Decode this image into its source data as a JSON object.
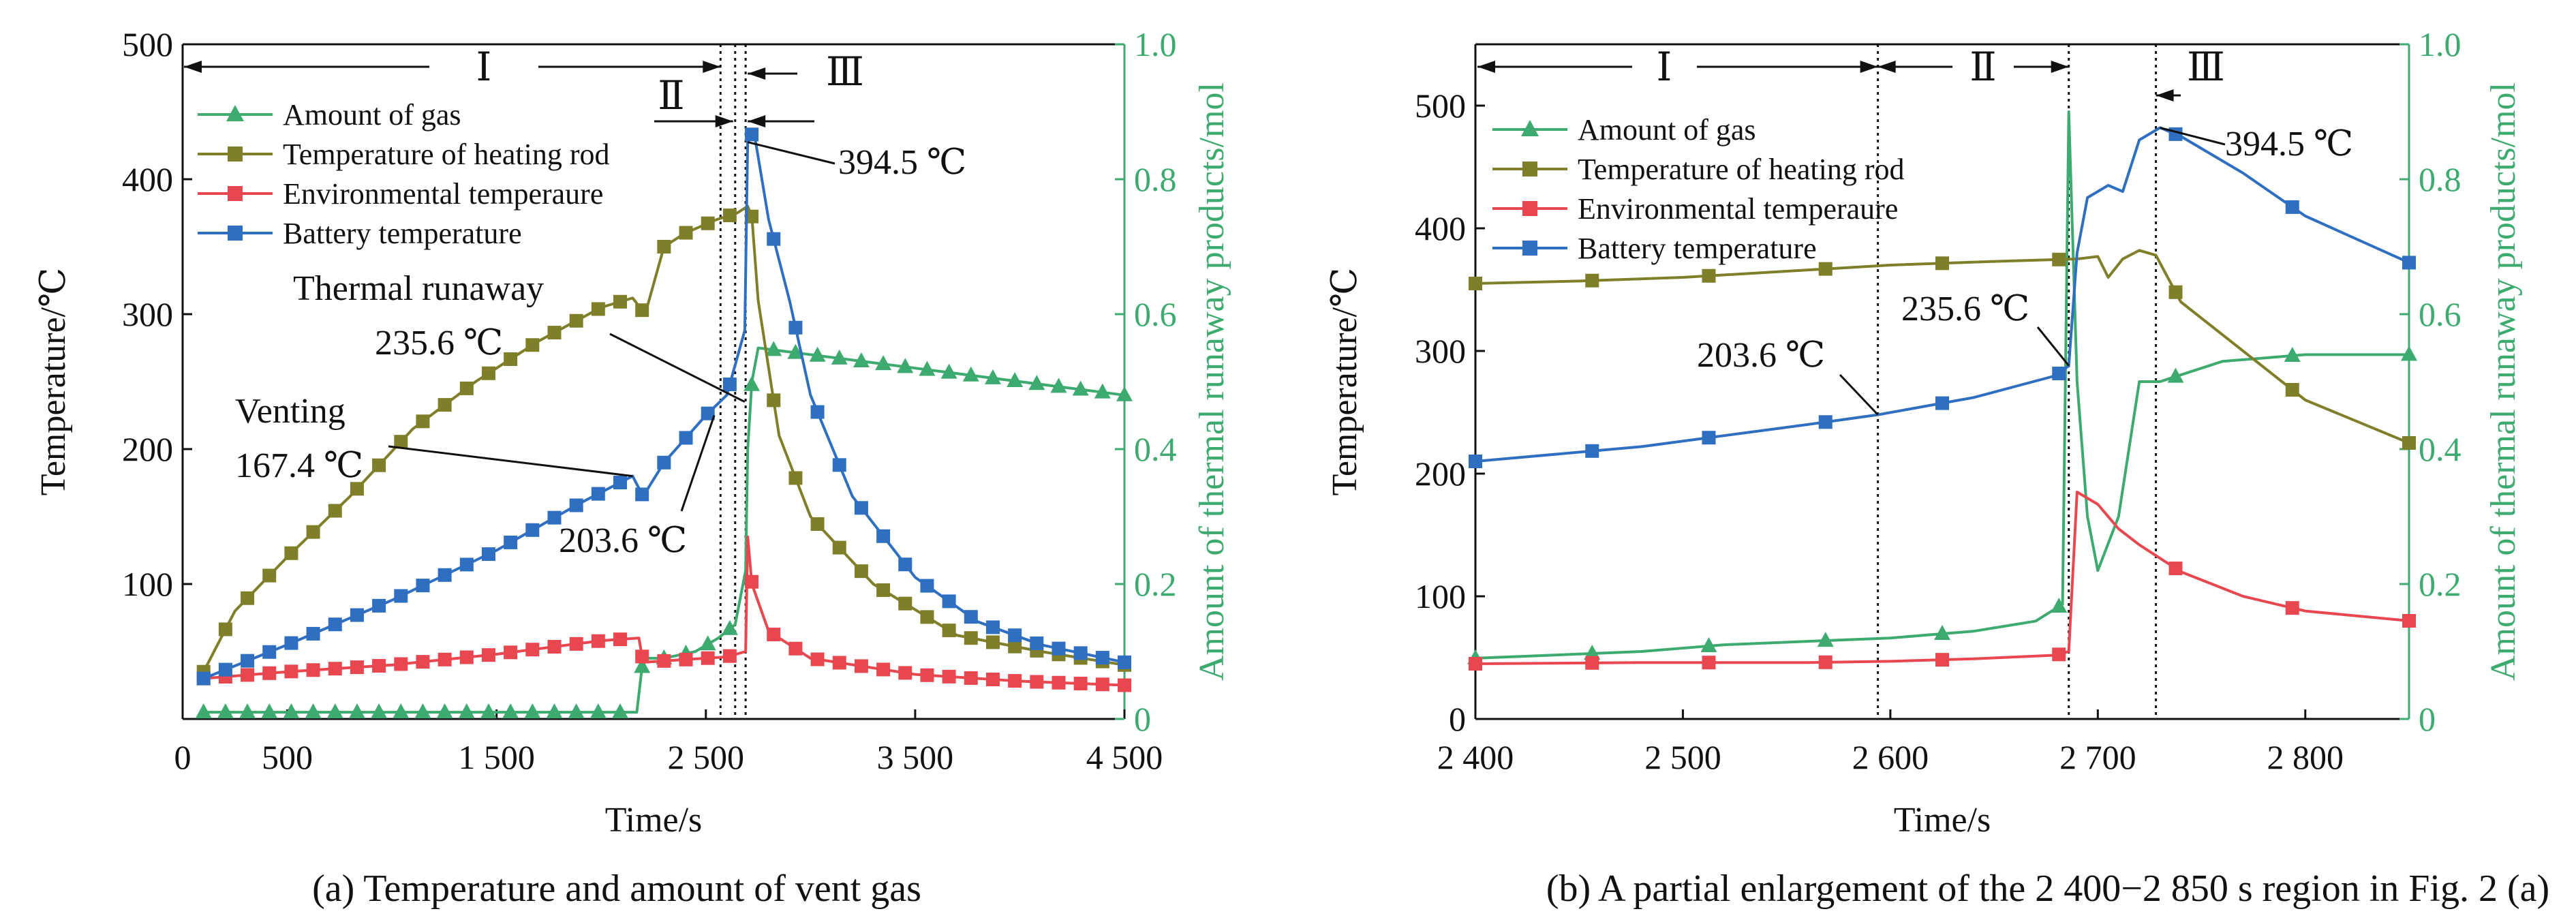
{
  "colors": {
    "gas": "#3daa6f",
    "rod": "#7f7f2a",
    "env": "#e8474f",
    "battery": "#2f6fc1"
  },
  "chart_data": [
    {
      "type": "line",
      "caption": "(a) Temperature and amount of vent gas",
      "xlabel": "Time/s",
      "ylabel": "Temperature/℃",
      "y2label": "Amount of thermal runaway products/mol",
      "xlim": [
        0,
        4500
      ],
      "ylim": [
        0,
        500
      ],
      "y2lim": [
        0,
        1.0
      ],
      "xticks": [
        "0",
        "500",
        "1 500",
        "2 500",
        "3 500",
        "4 500"
      ],
      "xtick_values": [
        0,
        500,
        1500,
        2500,
        3500,
        4500
      ],
      "yticks": [
        "100",
        "200",
        "300",
        "400",
        "500"
      ],
      "ytick_values": [
        100,
        200,
        300,
        400,
        500
      ],
      "y2ticks": [
        "0",
        "0.2",
        "0.4",
        "0.6",
        "0.8",
        "1.0"
      ],
      "y2tick_values": [
        0,
        0.2,
        0.4,
        0.6,
        0.8,
        1.0
      ],
      "legend": [
        "Amount of gas",
        "Temperature of heating rod",
        "Environmental temperaure",
        "Battery temperature"
      ],
      "legend_position": "top-left",
      "series": [
        {
          "name": "Amount of gas",
          "axis": "right",
          "points": [
            [
              100,
              0.01
            ],
            [
              500,
              0.01
            ],
            [
              1000,
              0.01
            ],
            [
              1500,
              0.01
            ],
            [
              2000,
              0.01
            ],
            [
              2170,
              0.01
            ],
            [
              2200,
              0.09
            ],
            [
              2300,
              0.09
            ],
            [
              2450,
              0.1
            ],
            [
              2560,
              0.12
            ],
            [
              2640,
              0.14
            ],
            [
              2690,
              0.22
            ],
            [
              2700,
              0.4
            ],
            [
              2720,
              0.5
            ],
            [
              2750,
              0.55
            ],
            [
              3000,
              0.54
            ],
            [
              3500,
              0.52
            ],
            [
              4000,
              0.5
            ],
            [
              4500,
              0.48
            ]
          ]
        },
        {
          "name": "Temperature of heating rod",
          "axis": "left",
          "points": [
            [
              100,
              35
            ],
            [
              250,
              80
            ],
            [
              500,
              120
            ],
            [
              800,
              165
            ],
            [
              1100,
              215
            ],
            [
              1400,
              250
            ],
            [
              1700,
              280
            ],
            [
              2000,
              305
            ],
            [
              2150,
              312
            ],
            [
              2210,
              300
            ],
            [
              2300,
              350
            ],
            [
              2400,
              360
            ],
            [
              2550,
              370
            ],
            [
              2650,
              375
            ],
            [
              2700,
              380
            ],
            [
              2720,
              372
            ],
            [
              2750,
              310
            ],
            [
              2850,
              210
            ],
            [
              3000,
              150
            ],
            [
              3300,
              100
            ],
            [
              3700,
              62
            ],
            [
              4100,
              50
            ],
            [
              4500,
              40
            ]
          ]
        },
        {
          "name": "Environmental temperaure",
          "axis": "left",
          "points": [
            [
              100,
              30
            ],
            [
              500,
              35
            ],
            [
              1000,
              40
            ],
            [
              1500,
              48
            ],
            [
              2000,
              58
            ],
            [
              2180,
              60
            ],
            [
              2200,
              42
            ],
            [
              2400,
              44
            ],
            [
              2600,
              46
            ],
            [
              2690,
              50
            ],
            [
              2700,
              135
            ],
            [
              2720,
              100
            ],
            [
              2800,
              65
            ],
            [
              3000,
              45
            ],
            [
              3500,
              33
            ],
            [
              4000,
              28
            ],
            [
              4500,
              25
            ]
          ]
        },
        {
          "name": "Battery temperature",
          "axis": "left",
          "points": [
            [
              100,
              30
            ],
            [
              500,
              55
            ],
            [
              1000,
              88
            ],
            [
              1500,
              125
            ],
            [
              1900,
              160
            ],
            [
              2150,
              180
            ],
            [
              2200,
              165
            ],
            [
              2300,
              190
            ],
            [
              2500,
              225
            ],
            [
              2600,
              240
            ],
            [
              2686,
              288
            ],
            [
              2700,
              430
            ],
            [
              2730,
              435
            ],
            [
              2800,
              370
            ],
            [
              2900,
              310
            ],
            [
              3000,
              240
            ],
            [
              3200,
              165
            ],
            [
              3500,
              105
            ],
            [
              3800,
              72
            ],
            [
              4100,
              55
            ],
            [
              4500,
              42
            ]
          ]
        }
      ],
      "annotations": {
        "thermal_runaway_label": "Thermal runaway",
        "thermal_runaway_temp": "235.6 ℃",
        "venting_label": "Venting",
        "venting_temp": "167.4 ℃",
        "point_203": "203.6 ℃",
        "peak": "394.5 ℃",
        "stage_1": "Ⅰ",
        "stage_2": "Ⅱ",
        "stage_3": "Ⅲ"
      },
      "vlines": [
        2570,
        2640,
        2690
      ]
    },
    {
      "type": "line",
      "caption": "(b) A partial enlargement of the 2 400−2 850 s region in Fig. 2 (a)",
      "xlabel": "Time/s",
      "ylabel": "Temperature/℃",
      "y2label": "Amount of thermal runaway products/mol",
      "xlim": [
        2400,
        2850
      ],
      "ylim": [
        0,
        550
      ],
      "y2lim": [
        0,
        1.0
      ],
      "xticks": [
        "2 400",
        "2 500",
        "2 600",
        "2 700",
        "2 800"
      ],
      "xtick_values": [
        2400,
        2500,
        2600,
        2700,
        2800
      ],
      "yticks": [
        "0",
        "100",
        "200",
        "300",
        "400",
        "500"
      ],
      "ytick_values": [
        0,
        100,
        200,
        300,
        400,
        500
      ],
      "y2ticks": [
        "0",
        "0.2",
        "0.4",
        "0.6",
        "0.8",
        "1.0"
      ],
      "y2tick_values": [
        0,
        0.2,
        0.4,
        0.6,
        0.8,
        1.0
      ],
      "legend": [
        "Amount of gas",
        "Temperature of heating rod",
        "Environmental temperaure",
        "Battery temperature"
      ],
      "legend_position": "top-left",
      "series": [
        {
          "name": "Amount of gas",
          "axis": "right",
          "points": [
            [
              2400,
              0.09
            ],
            [
              2480,
              0.1
            ],
            [
              2520,
              0.11
            ],
            [
              2560,
              0.115
            ],
            [
              2600,
              0.12
            ],
            [
              2640,
              0.13
            ],
            [
              2670,
              0.145
            ],
            [
              2683,
              0.17
            ],
            [
              2686,
              0.9
            ],
            [
              2690,
              0.5
            ],
            [
              2695,
              0.3
            ],
            [
              2700,
              0.22
            ],
            [
              2710,
              0.3
            ],
            [
              2720,
              0.5
            ],
            [
              2730,
              0.5
            ],
            [
              2760,
              0.53
            ],
            [
              2800,
              0.54
            ],
            [
              2850,
              0.54
            ]
          ]
        },
        {
          "name": "Temperature of heating rod",
          "axis": "left",
          "points": [
            [
              2400,
              355
            ],
            [
              2450,
              357
            ],
            [
              2500,
              360
            ],
            [
              2550,
              365
            ],
            [
              2600,
              370
            ],
            [
              2650,
              373
            ],
            [
              2690,
              375
            ],
            [
              2700,
              377
            ],
            [
              2705,
              360
            ],
            [
              2712,
              375
            ],
            [
              2720,
              382
            ],
            [
              2728,
              378
            ],
            [
              2740,
              340
            ],
            [
              2770,
              300
            ],
            [
              2800,
              260
            ],
            [
              2850,
              225
            ]
          ]
        },
        {
          "name": "Environmental temperaure",
          "axis": "left",
          "points": [
            [
              2400,
              45
            ],
            [
              2480,
              46
            ],
            [
              2560,
              46
            ],
            [
              2600,
              47
            ],
            [
              2640,
              49
            ],
            [
              2680,
              52
            ],
            [
              2686,
              55
            ],
            [
              2690,
              185
            ],
            [
              2700,
              175
            ],
            [
              2710,
              155
            ],
            [
              2720,
              142
            ],
            [
              2740,
              120
            ],
            [
              2770,
              100
            ],
            [
              2800,
              88
            ],
            [
              2850,
              80
            ]
          ]
        },
        {
          "name": "Battery temperature",
          "axis": "left",
          "points": [
            [
              2400,
              210
            ],
            [
              2480,
              222
            ],
            [
              2560,
              240
            ],
            [
              2594,
              248
            ],
            [
              2640,
              262
            ],
            [
              2680,
              280
            ],
            [
              2686,
              288
            ],
            [
              2690,
              380
            ],
            [
              2695,
              425
            ],
            [
              2705,
              435
            ],
            [
              2712,
              430
            ],
            [
              2720,
              472
            ],
            [
              2730,
              482
            ],
            [
              2740,
              475
            ],
            [
              2770,
              445
            ],
            [
              2800,
              410
            ],
            [
              2850,
              372
            ]
          ]
        }
      ],
      "annotations": {
        "point_203": "203.6 ℃",
        "point_235": "235.6 ℃",
        "peak": "394.5 ℃",
        "stage_1": "Ⅰ",
        "stage_2": "Ⅱ",
        "stage_3": "Ⅲ"
      },
      "vlines": [
        2594,
        2686,
        2728
      ]
    }
  ]
}
